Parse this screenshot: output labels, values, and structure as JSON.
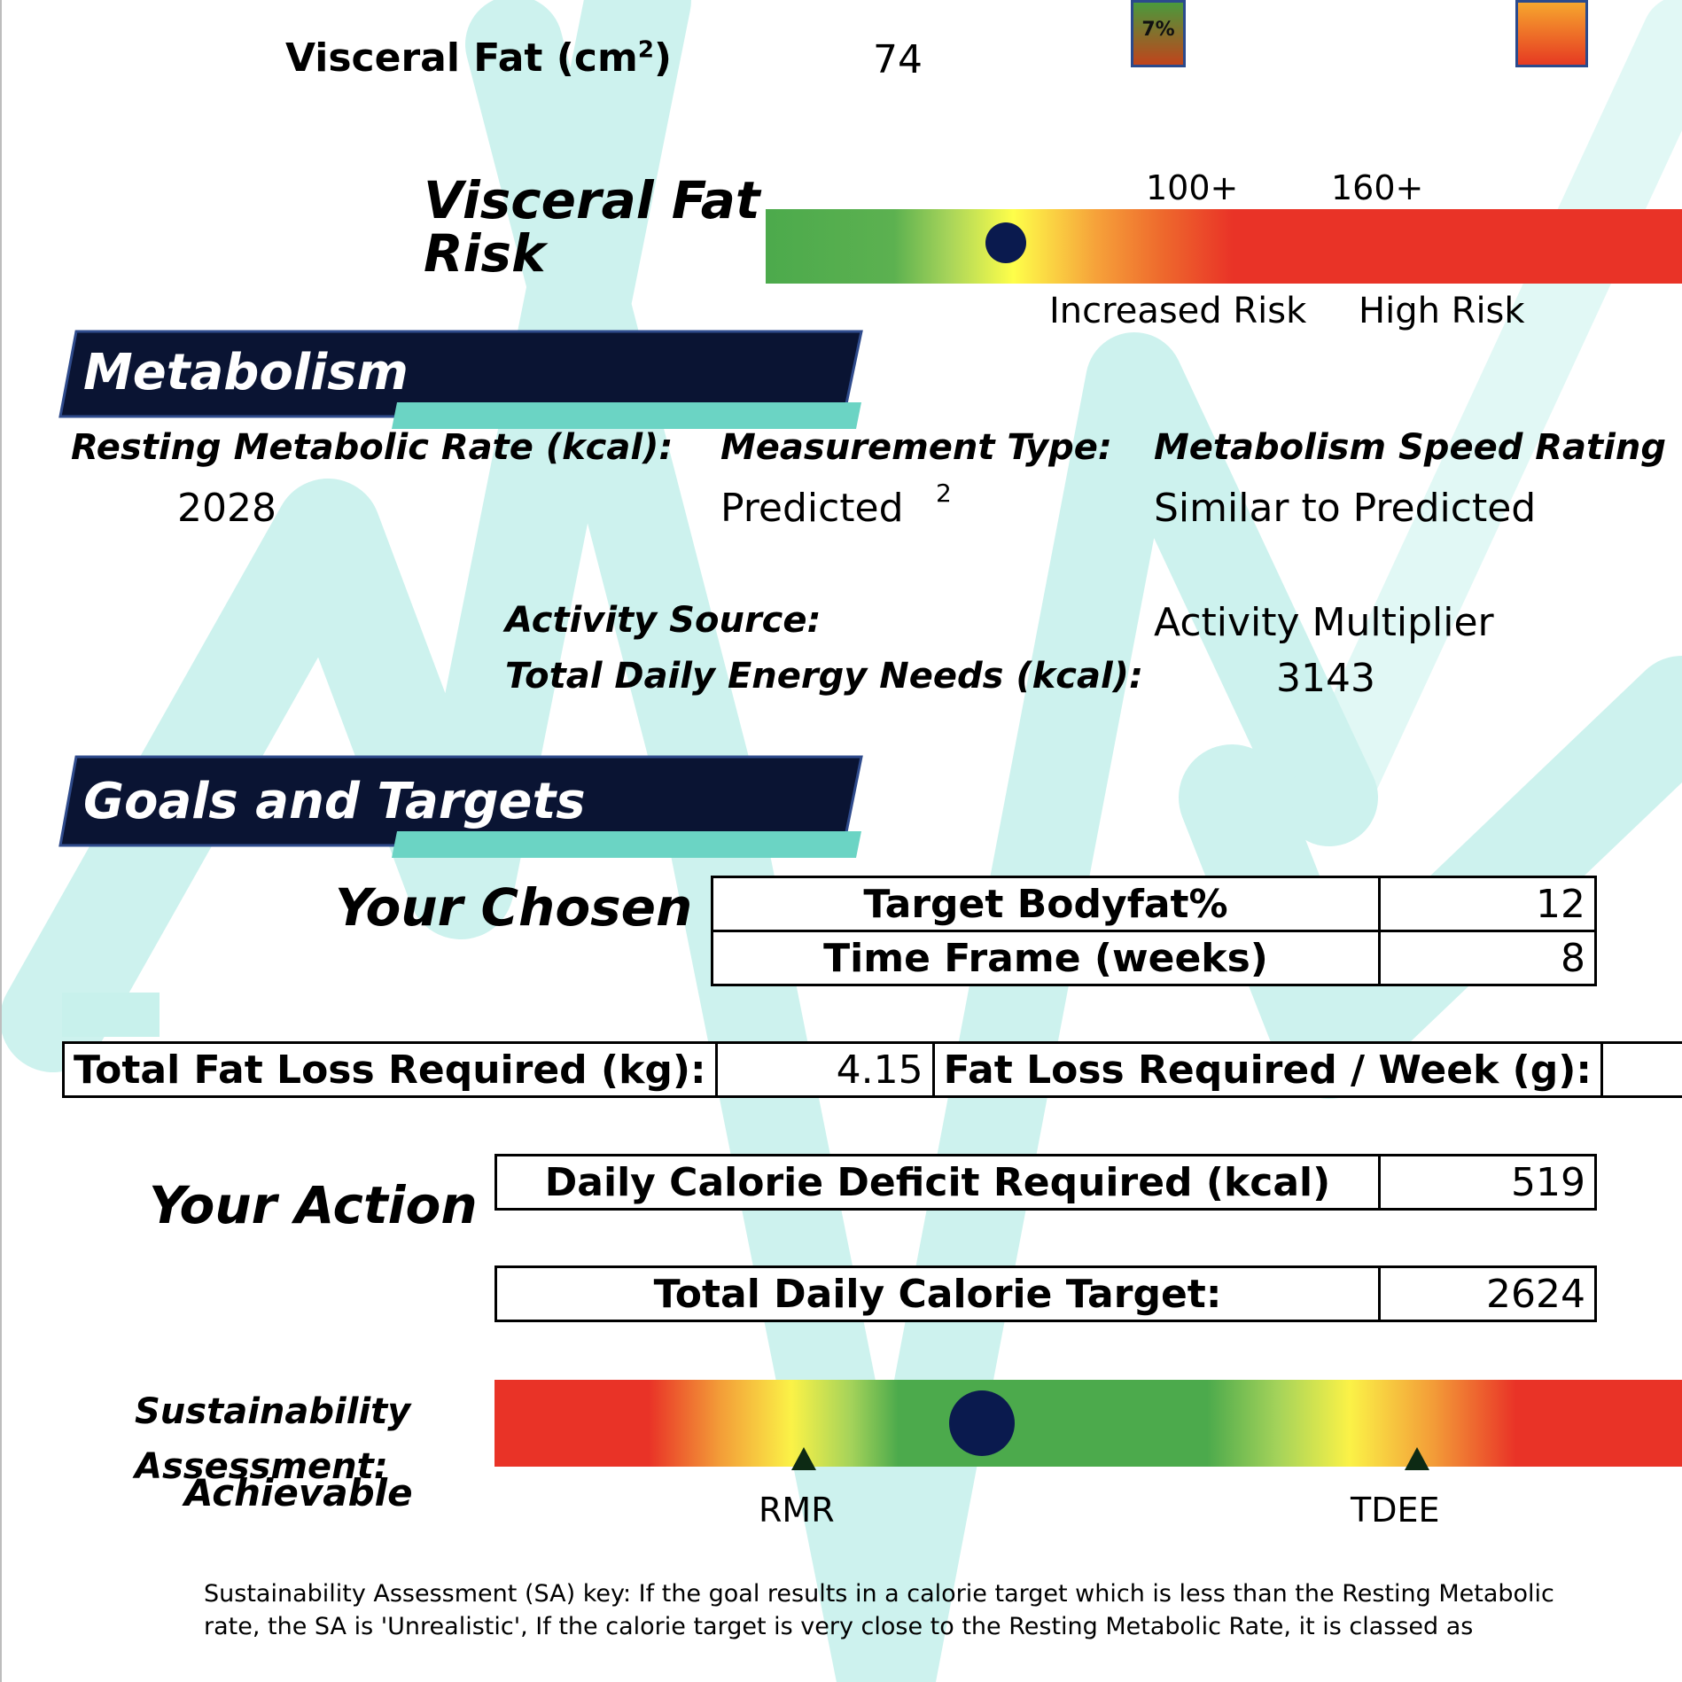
{
  "visceral": {
    "label": "Visceral Fat (cm",
    "sup": "2",
    "label_end": ")",
    "value": "74",
    "small_badge": "7%",
    "risk_title_line1": "Visceral Fat",
    "risk_title_line2": "Risk",
    "scale_100": "100+",
    "scale_160": "160+",
    "increased_risk": "Increased Risk",
    "high_risk": "High Risk",
    "marker_value": 74
  },
  "metabolism": {
    "section_title": "Metabolism",
    "rmr_label": "Resting Metabolic Rate (kcal):",
    "rmr_value": "2028",
    "measurement_label": "Measurement Type:",
    "measurement_value": "Predicted",
    "measurement_sup": "2",
    "speed_label": "Metabolism Speed Rating",
    "speed_value": "Similar to Predicted",
    "activity_source_label": "Activity Source:",
    "activity_source_value": "Activity Multiplier",
    "tdee_label": "Total Daily Energy Needs (kcal):",
    "tdee_value": "3143"
  },
  "goals": {
    "section_title": "Goals and Targets",
    "chosen_label": "Your Chosen",
    "target_bodyfat_label": "Target Bodyfat%",
    "target_bodyfat_value": "12",
    "time_frame_label": "Time Frame (weeks)",
    "time_frame_value": "8",
    "total_fat_loss_label": "Total Fat Loss Required (kg):",
    "total_fat_loss_value": "4.15",
    "weekly_fat_loss_label": "Fat Loss Required / Week (g):"
  },
  "action": {
    "label": "Your Action",
    "deficit_label": "Daily Calorie Deficit Required (kcal)",
    "deficit_value": "519",
    "target_label": "Total Daily Calorie Target:",
    "target_value": "2624"
  },
  "sustainability": {
    "label_line1": "Sustainability",
    "label_line2": "Assessment:",
    "result": "Achievable",
    "rmr_marker": "RMR",
    "tdee_marker": "TDEE",
    "key_line1": "Sustainability Assessment (SA)  key: If the goal results in a calorie target  which is less than the Resting Metabolic",
    "key_line2": "rate,  the SA is 'Unrealistic', If the calorie target  is very close to the Resting Metabolic  Rate, it is classed  as"
  },
  "colors": {
    "banner_navy": "#0a1433",
    "banner_teal": "#6bd4c4",
    "marker_navy": "#0a1a4e",
    "watermark": "#c6f0ec"
  }
}
